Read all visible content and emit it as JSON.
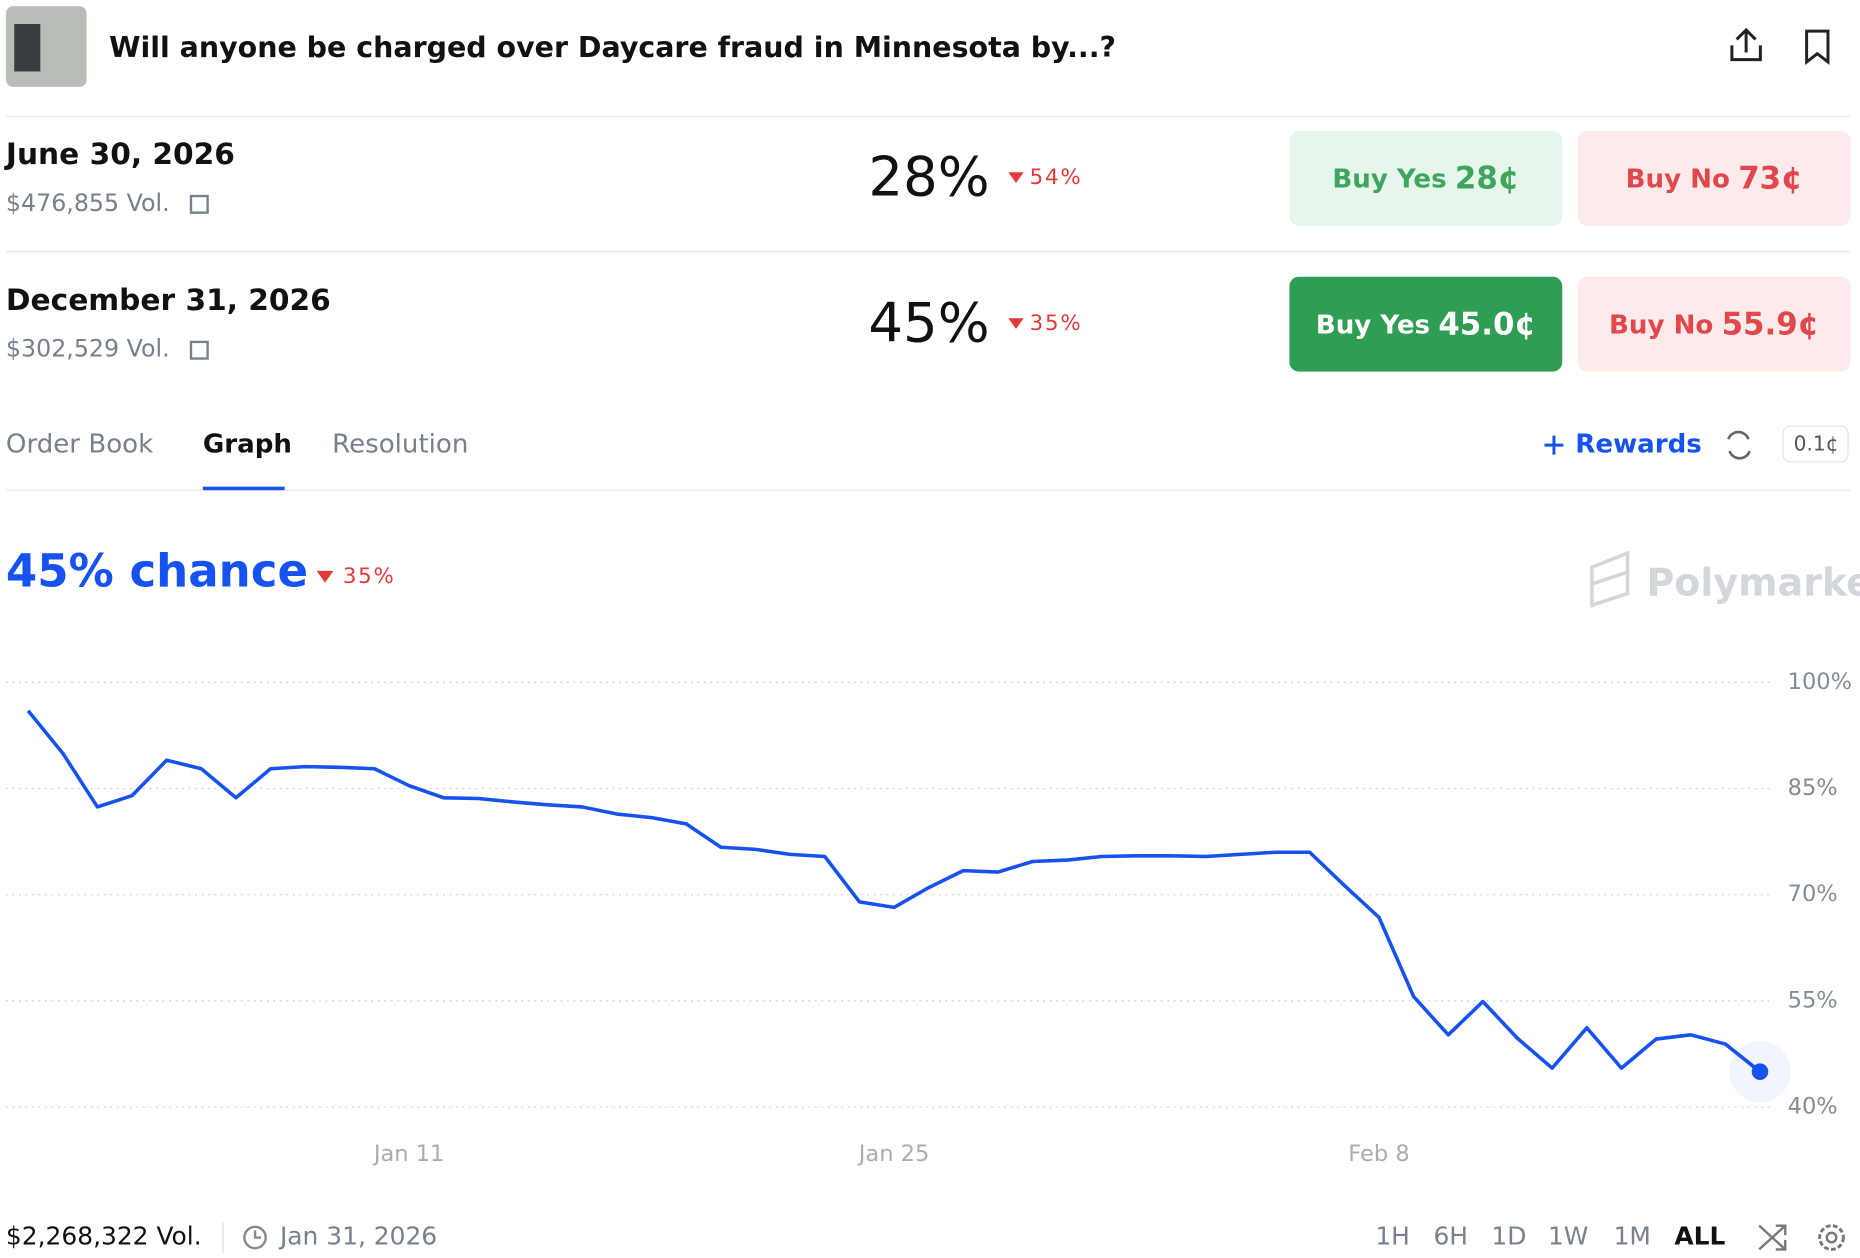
{
  "header": {
    "title": "Will anyone be charged over Daycare fraud in Minnesota by...?"
  },
  "markets": [
    {
      "date": "June 30, 2026",
      "volume": "$476,855 Vol.",
      "chance": "28%",
      "change": "54%",
      "buy_yes": "Buy Yes",
      "yes_price": "28¢",
      "buy_no": "Buy No",
      "no_price": "73¢"
    },
    {
      "date": "December 31, 2026",
      "volume": "$302,529 Vol.",
      "chance": "45%",
      "change": "35%",
      "buy_yes": "Buy Yes",
      "yes_price": "45.0¢",
      "buy_no": "Buy No",
      "no_price": "55.9¢"
    }
  ],
  "tabs": [
    "Order Book",
    "Graph",
    "Resolution"
  ],
  "toolbar": {
    "rewards": "Rewards",
    "tick_size": "0.1¢"
  },
  "chart_data": {
    "type": "line",
    "headline": "45% chance",
    "change": "35%",
    "watermark": "Polymarket",
    "categories": [
      null,
      null,
      null,
      null,
      null,
      null,
      null,
      null,
      null,
      null,
      null,
      "Jan 11",
      null,
      null,
      null,
      null,
      null,
      null,
      null,
      null,
      null,
      null,
      null,
      null,
      null,
      "Jan 25",
      null,
      null,
      null,
      null,
      null,
      null,
      null,
      null,
      null,
      null,
      null,
      null,
      null,
      "Feb 8",
      null,
      null,
      null,
      null,
      null,
      null,
      null,
      null,
      null,
      null,
      null
    ],
    "values": [
      96,
      90,
      82.4,
      84,
      89,
      87.8,
      83.7,
      87.8,
      88.1,
      88,
      87.8,
      85.4,
      83.7,
      83.6,
      83.1,
      82.7,
      82.4,
      81.4,
      80.9,
      80,
      76.7,
      76.4,
      75.7,
      75.4,
      69,
      68.2,
      71,
      73.4,
      73.2,
      74.7,
      74.9,
      75.4,
      75.5,
      75.5,
      75.4,
      75.7,
      76,
      76,
      71.3,
      66.8,
      55.6,
      50.2,
      54.9,
      49.7,
      45.5,
      51.2,
      45.5,
      49.6,
      50.2,
      48.9,
      45
    ],
    "color": "#1652f0",
    "ylim": [
      40,
      100
    ],
    "yticks": [
      {
        "value": 40,
        "label": "40%"
      },
      {
        "value": 55,
        "label": "55%"
      },
      {
        "value": 70,
        "label": "70%"
      },
      {
        "value": 85,
        "label": "85%"
      },
      {
        "value": 100,
        "label": "100%"
      }
    ],
    "grid": true
  },
  "footer": {
    "volume": "$2,268,322 Vol.",
    "date": "Jan 31, 2026",
    "ranges": [
      "1H",
      "6H",
      "1D",
      "1W",
      "1M",
      "ALL"
    ]
  }
}
